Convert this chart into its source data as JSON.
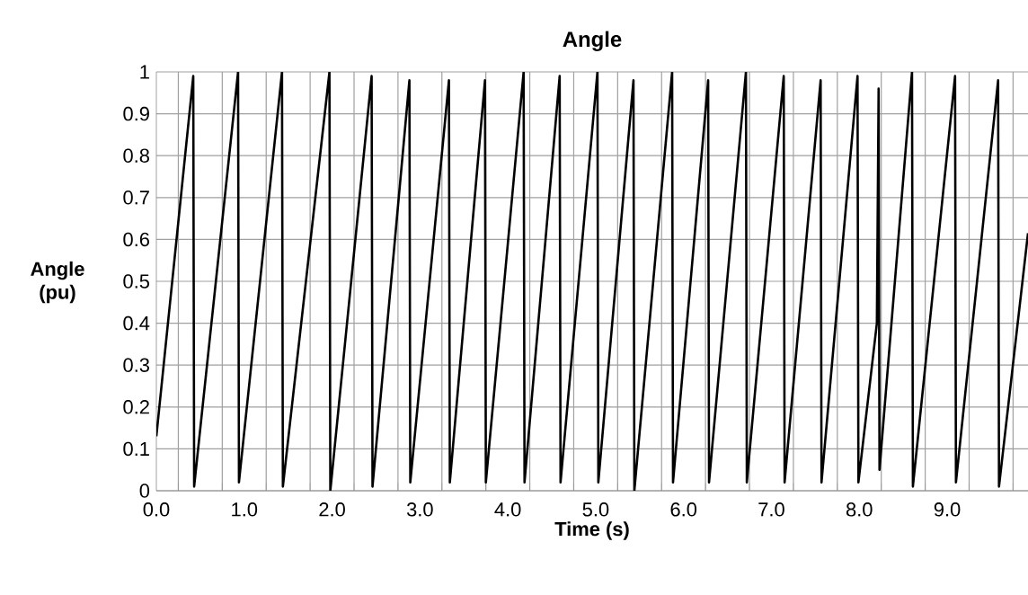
{
  "chart_data": {
    "type": "line",
    "title": "Angle",
    "xlabel": "Time (s)",
    "ylabel": "Angle (pu)",
    "series": [
      {
        "color": "#000000",
        "x": [
          0,
          0.42,
          0.43,
          0.93,
          0.94,
          1.43,
          1.44,
          1.97,
          1.98,
          2.45,
          2.46,
          2.88,
          2.89,
          3.33,
          3.34,
          3.74,
          3.75,
          4.18,
          4.19,
          4.59,
          4.6,
          5.02,
          5.03,
          5.43,
          5.44,
          5.87,
          5.88,
          6.28,
          6.29,
          6.71,
          6.72,
          7.14,
          7.15,
          7.56,
          7.57,
          7.98,
          7.99,
          8.2,
          8.22,
          8.23,
          8.6,
          8.61,
          9.09,
          9.1,
          9.58,
          9.59,
          9.92
        ],
        "values": [
          0.13,
          0.99,
          0.01,
          1.0,
          0.02,
          1.0,
          0.01,
          1.0,
          0.0,
          0.99,
          0.01,
          0.98,
          0.02,
          0.98,
          0.02,
          0.98,
          0.02,
          1.0,
          0.02,
          0.99,
          0.02,
          1.0,
          0.02,
          0.98,
          0.0,
          1.0,
          0.02,
          0.98,
          0.02,
          1.0,
          0.02,
          0.99,
          0.02,
          0.98,
          0.02,
          0.99,
          0.02,
          0.4,
          0.96,
          0.05,
          1.0,
          0.01,
          0.99,
          0.02,
          0.98,
          0.01,
          0.615
        ]
      }
    ],
    "xlim": [
      0,
      9.92
    ],
    "xticks": [
      {
        "value": 0,
        "label": "0.0"
      },
      {
        "value": 1,
        "label": "1.0"
      },
      {
        "value": 2,
        "label": "2.0"
      },
      {
        "value": 3,
        "label": "3.0"
      },
      {
        "value": 4,
        "label": "4.0"
      },
      {
        "value": 5,
        "label": "5.0"
      },
      {
        "value": 6,
        "label": "6.0"
      },
      {
        "value": 7,
        "label": "7.0"
      },
      {
        "value": 8,
        "label": "8.0"
      },
      {
        "value": 9,
        "label": "9.0"
      },
      {
        "value": 0.25,
        "label": null
      },
      {
        "value": 0.75,
        "label": null
      },
      {
        "value": 1.25,
        "label": null
      },
      {
        "value": 1.75,
        "label": null
      },
      {
        "value": 2.25,
        "label": null
      },
      {
        "value": 2.75,
        "label": null
      },
      {
        "value": 3.25,
        "label": null
      },
      {
        "value": 3.75,
        "label": null
      },
      {
        "value": 4.25,
        "label": null
      },
      {
        "value": 4.75,
        "label": null
      },
      {
        "value": 5.25,
        "label": null
      },
      {
        "value": 5.75,
        "label": null
      },
      {
        "value": 6.25,
        "label": null
      },
      {
        "value": 6.75,
        "label": null
      },
      {
        "value": 7.25,
        "label": null
      },
      {
        "value": 7.75,
        "label": null
      },
      {
        "value": 8.25,
        "label": null
      },
      {
        "value": 8.75,
        "label": null
      },
      {
        "value": 9.25,
        "label": null
      },
      {
        "value": 9.75,
        "label": null
      }
    ],
    "ylim": [
      0,
      1
    ],
    "yticks": [
      0,
      0.1,
      0.2,
      0.3,
      0.4,
      0.5,
      0.6,
      0.7,
      0.8,
      0.9,
      1
    ],
    "grid": true,
    "marker": "none",
    "line_style": "solid"
  }
}
